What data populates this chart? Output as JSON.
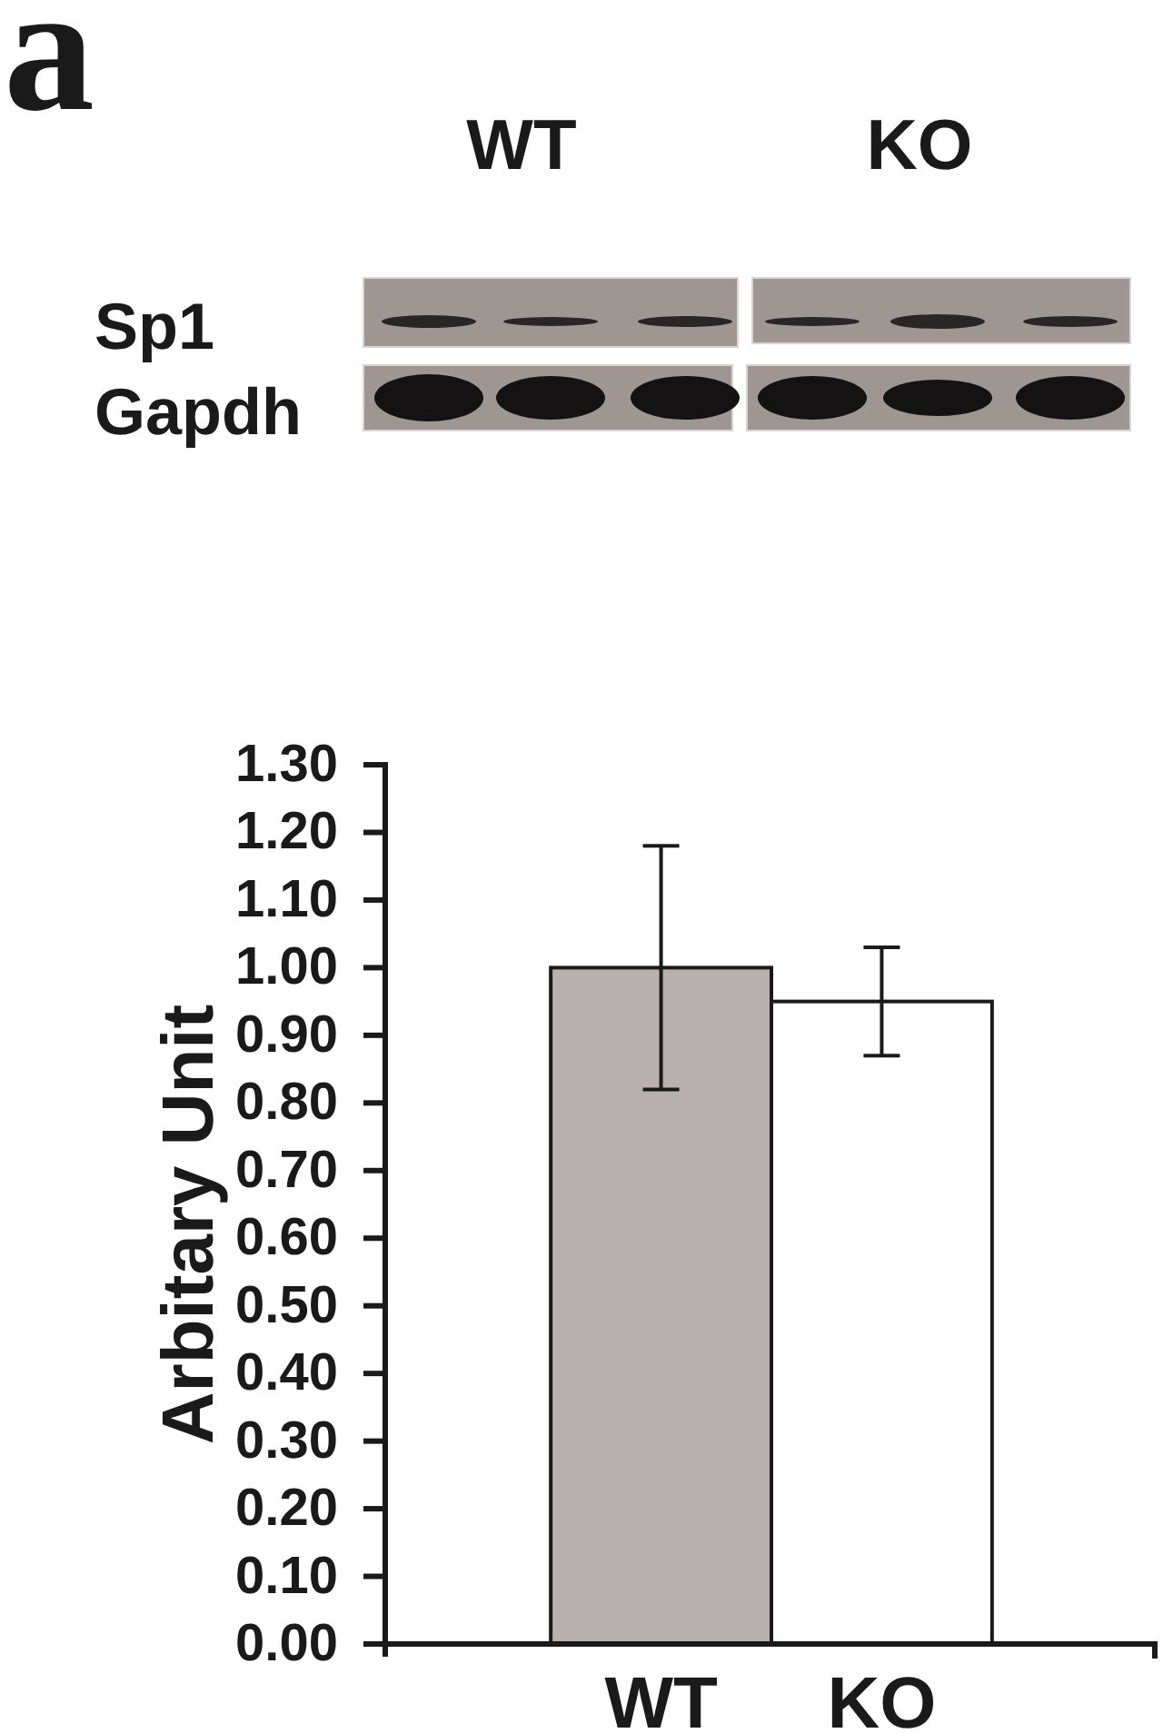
{
  "chart_data": {
    "type": "bar",
    "categories": [
      "WT",
      "KO"
    ],
    "values": [
      1.0,
      0.95
    ],
    "errors": [
      0.18,
      0.08
    ],
    "colors": [
      "#b9b1b1",
      "#ffffff"
    ],
    "ylabel": "Arbitary Unit",
    "ylim": [
      0,
      1.3
    ],
    "yticks": [
      {
        "value": 0,
        "label": "0.00"
      },
      {
        "value": 0.1,
        "label": "0.10"
      },
      {
        "value": 0.2,
        "label": "0.20"
      },
      {
        "value": 0.3,
        "label": "0.30"
      },
      {
        "value": 0.4,
        "label": "0.40"
      },
      {
        "value": 0.5,
        "label": "0.50"
      },
      {
        "value": 0.6,
        "label": "0.60"
      },
      {
        "value": 0.7,
        "label": "0.70"
      },
      {
        "value": 0.8,
        "label": "0.80"
      },
      {
        "value": 0.9,
        "label": "0.90"
      },
      {
        "value": 1.0,
        "label": "1.00"
      },
      {
        "value": 1.1,
        "label": "1.10"
      },
      {
        "value": 1.2,
        "label": "1.20"
      },
      {
        "value": 1.3,
        "label": "1.30"
      }
    ],
    "annotations": [
      "a",
      "WT",
      "KO",
      "Sp1",
      "Gapdh"
    ]
  }
}
